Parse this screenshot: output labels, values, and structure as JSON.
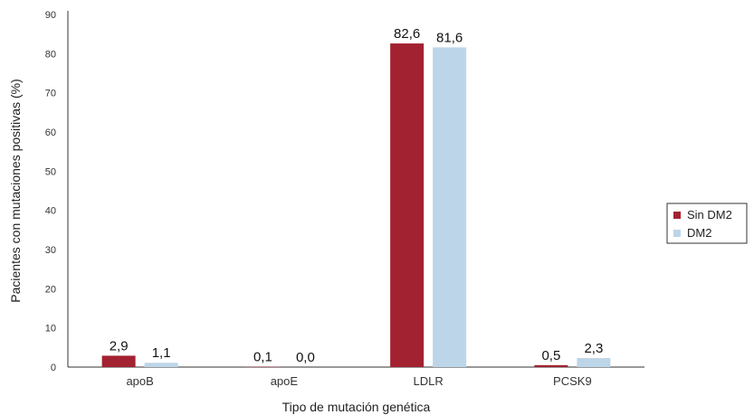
{
  "chart_data": {
    "type": "bar",
    "categories": [
      "apoB",
      "apoE",
      "LDLR",
      "PCSK9"
    ],
    "series": [
      {
        "name": "Sin DM2",
        "color": "#a32231",
        "values": [
          2.9,
          0.1,
          82.6,
          0.5
        ],
        "labels": [
          "2,9",
          "0,1",
          "82,6",
          "0,5"
        ]
      },
      {
        "name": "DM2",
        "color": "#bcd5e8",
        "values": [
          1.1,
          0.0,
          81.6,
          2.3
        ],
        "labels": [
          "1,1",
          "0,0",
          "81,6",
          "2,3"
        ]
      }
    ],
    "xlabel": "Tipo de mutación genética",
    "ylabel": "Pacientes con mutaciones positivas (%)",
    "ylim": [
      0,
      90
    ],
    "yticks": [
      0,
      10,
      20,
      30,
      40,
      50,
      60,
      70,
      80,
      90
    ],
    "grid": false,
    "legend_position": "right"
  }
}
